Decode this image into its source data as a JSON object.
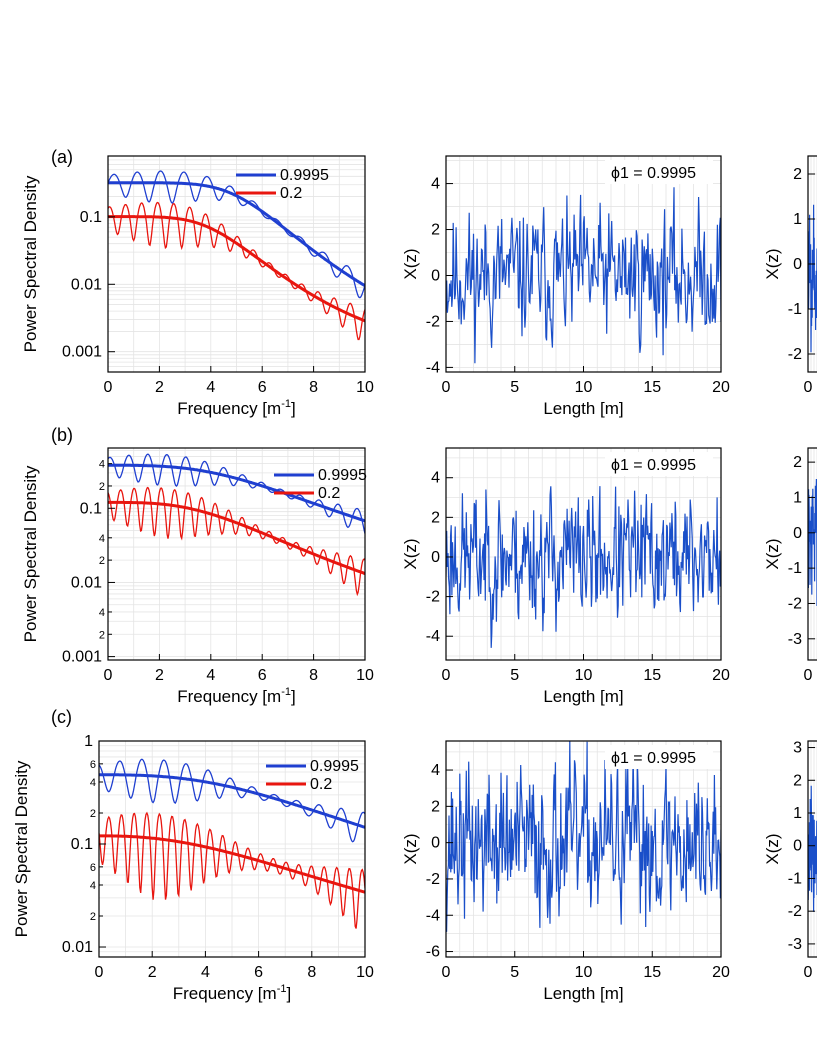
{
  "legend_labels": [
    "0.9995",
    "0.2"
  ],
  "colors": {
    "blue": "#1f3fd0",
    "red": "#e8160f",
    "signal": "#1a4fc9"
  },
  "chart_data": [
    {
      "type": "line",
      "id": "psd_a",
      "panel": "(a)",
      "xlabel": "Frequency [m-1]",
      "ylabel": "Power Spectral Density",
      "xlim": [
        0,
        10
      ],
      "ylim": [
        0.0005,
        0.8
      ],
      "yscale": "log",
      "xticks": [
        "0",
        "2",
        "4",
        "6",
        "8",
        "10"
      ],
      "yticks": [
        {
          "v": 0.001,
          "label": "0.001"
        },
        {
          "v": 0.01,
          "label": "0.01"
        },
        {
          "v": 0.1,
          "label": "0.1"
        }
      ],
      "series": [
        {
          "name": "0.9995",
          "amp": 0.32,
          "floor": 0.0009,
          "fc": 5.5,
          "order": 6,
          "ripple": 0.5,
          "freq": 1.1
        },
        {
          "name": "0.2",
          "amp": 0.1,
          "floor": 0.00085,
          "fc": 4.6,
          "order": 5,
          "ripple": 0.65,
          "freq": 1.6
        }
      ],
      "legend_position": "top-right"
    },
    {
      "type": "line",
      "id": "psd_b",
      "panel": "(b)",
      "xlabel": "Frequency [m-1]",
      "ylabel": "Power Spectral Density",
      "xlim": [
        0,
        10
      ],
      "ylim": [
        0.0009,
        0.65
      ],
      "yscale": "log",
      "xticks": [
        "0",
        "2",
        "4",
        "6",
        "8",
        "10"
      ],
      "yticks": [
        {
          "v": 0.001,
          "label": "0.001"
        },
        {
          "v": 0.01,
          "label": "0.01"
        },
        {
          "v": 0.1,
          "label": "0.1"
        }
      ],
      "minor_yticks": [
        {
          "v": 0.002,
          "label": "2"
        },
        {
          "v": 0.004,
          "label": "4"
        },
        {
          "v": 0.02,
          "label": "2"
        },
        {
          "v": 0.04,
          "label": "4"
        },
        {
          "v": 0.2,
          "label": "2"
        },
        {
          "v": 0.4,
          "label": "4"
        }
      ],
      "series": [
        {
          "name": "0.9995",
          "amp": 0.38,
          "floor": 0.0,
          "fc": 6.2,
          "order": 3.2,
          "ripple": 0.45,
          "freq": 1.35
        },
        {
          "name": "0.2",
          "amp": 0.12,
          "floor": 0.0,
          "fc": 5.2,
          "order": 3.2,
          "ripple": 0.65,
          "freq": 1.9
        }
      ],
      "legend_position": "top-right"
    },
    {
      "type": "line",
      "id": "psd_c",
      "panel": "(c)",
      "xlabel": "Frequency [m-1]",
      "ylabel": "Power Spectral Density",
      "xlim": [
        0,
        10
      ],
      "ylim": [
        0.008,
        1.0
      ],
      "yscale": "log",
      "xticks": [
        "0",
        "2",
        "4",
        "6",
        "8",
        "10"
      ],
      "yticks": [
        {
          "v": 0.01,
          "label": "0.01"
        },
        {
          "v": 0.1,
          "label": "0.1"
        },
        {
          "v": 1,
          "label": "1"
        }
      ],
      "minor_yticks": [
        {
          "v": 0.02,
          "label": "2"
        },
        {
          "v": 0.04,
          "label": "4"
        },
        {
          "v": 0.06,
          "label": "6"
        },
        {
          "v": 0.2,
          "label": "2"
        },
        {
          "v": 0.4,
          "label": "4"
        },
        {
          "v": 0.6,
          "label": "6"
        }
      ],
      "series": [
        {
          "name": "0.9995",
          "amp": 0.47,
          "floor": 0.0,
          "fc": 7.5,
          "order": 2.8,
          "ripple": 0.45,
          "freq": 1.2
        },
        {
          "name": "0.2",
          "amp": 0.12,
          "floor": 0.0,
          "fc": 6.8,
          "order": 2.4,
          "ripple": 0.75,
          "freq": 2.1
        }
      ],
      "legend_position": "top-right"
    },
    {
      "type": "line",
      "id": "sig_a",
      "xlabel": "Length [m]",
      "ylabel": "X(z)",
      "annotation": "ϕ1 = 0.9995",
      "xlim": [
        0,
        20
      ],
      "ylim": [
        -4.2,
        5.2
      ],
      "xticks": [
        0,
        5,
        10,
        15,
        20
      ],
      "yticks": [
        -4,
        -2,
        0,
        2,
        4
      ],
      "series": [
        {
          "name": "0.9995",
          "n": 380,
          "amp": 1.3,
          "seed": 11
        }
      ]
    },
    {
      "type": "line",
      "id": "sig_b",
      "xlabel": "Length [m]",
      "ylabel": "X(z)",
      "annotation": "ϕ1 = 0.9995",
      "xlim": [
        0,
        20
      ],
      "ylim": [
        -5.2,
        5.5
      ],
      "xticks": [
        0,
        5,
        10,
        15,
        20
      ],
      "yticks": [
        -4,
        -2,
        0,
        2,
        4
      ],
      "series": [
        {
          "name": "0.9995",
          "n": 420,
          "amp": 1.5,
          "seed": 23
        }
      ]
    },
    {
      "type": "line",
      "id": "sig_c",
      "xlabel": "Length [m]",
      "ylabel": "X(z)",
      "annotation": "ϕ1 = 0.9995",
      "xlim": [
        0,
        20
      ],
      "ylim": [
        -6.3,
        5.6
      ],
      "xticks": [
        0,
        5,
        10,
        15,
        20
      ],
      "yticks": [
        -6,
        -4,
        -2,
        0,
        2,
        4
      ],
      "series": [
        {
          "name": "0.9995",
          "n": 460,
          "amp": 1.9,
          "seed": 37
        }
      ]
    },
    {
      "type": "line",
      "id": "third_a",
      "ylabel": "X(z)",
      "xlim": [
        0,
        20
      ],
      "ylim": [
        -2.4,
        2.4
      ],
      "xticks": [
        0
      ],
      "yticks": [
        -2,
        -1,
        0,
        1,
        2
      ],
      "series": [
        {
          "name": "0.9995",
          "n": 300,
          "amp": 0.8,
          "seed": 5
        }
      ]
    },
    {
      "type": "line",
      "id": "third_b",
      "ylabel": "X(z)",
      "xlim": [
        0,
        20
      ],
      "ylim": [
        -3.6,
        2.4
      ],
      "xticks": [
        0
      ],
      "yticks": [
        -3,
        -2,
        -1,
        0,
        1,
        2
      ],
      "series": [
        {
          "name": "0.9995",
          "n": 300,
          "amp": 0.9,
          "seed": 7
        }
      ]
    },
    {
      "type": "line",
      "id": "third_c",
      "ylabel": "X(z)",
      "xlim": [
        0,
        20
      ],
      "ylim": [
        -3.4,
        3.2
      ],
      "xticks": [
        0
      ],
      "yticks": [
        -3,
        -2,
        -1,
        0,
        1,
        2,
        3
      ],
      "series": [
        {
          "name": "0.9995",
          "n": 300,
          "amp": 1.0,
          "seed": 9
        }
      ]
    }
  ]
}
